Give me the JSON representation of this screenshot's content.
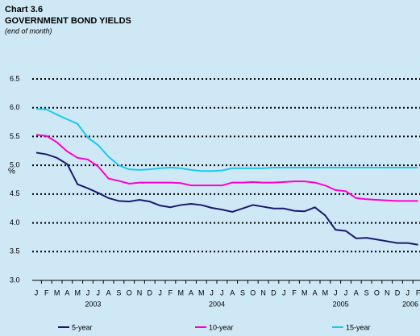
{
  "chart_data": {
    "type": "line",
    "title": "Chart 3.6",
    "subtitle": "GOVERNMENT BOND YIELDS",
    "note": "(end of month)",
    "y_label": "%",
    "categories": [
      "J",
      "F",
      "M",
      "A",
      "M",
      "J",
      "J",
      "A",
      "S",
      "O",
      "N",
      "D",
      "J",
      "F",
      "M",
      "A",
      "M",
      "J",
      "J",
      "A",
      "S",
      "O",
      "N",
      "D",
      "J",
      "F",
      "M",
      "A",
      "M",
      "J",
      "J",
      "A",
      "S",
      "O",
      "N",
      "D",
      "J",
      "F"
    ],
    "years": [
      "2003",
      "2004",
      "2005",
      "2006"
    ],
    "series": [
      {
        "name": "5-year",
        "color": "#1a1a6e",
        "values": [
          5.22,
          5.19,
          5.13,
          5.02,
          4.67,
          4.6,
          4.52,
          4.43,
          4.38,
          4.37,
          4.4,
          4.37,
          4.3,
          4.27,
          4.31,
          4.33,
          4.31,
          4.26,
          4.23,
          4.19,
          4.25,
          4.31,
          4.28,
          4.25,
          4.25,
          4.21,
          4.2,
          4.27,
          4.13,
          3.88,
          3.86,
          3.73,
          3.74,
          3.71,
          3.68,
          3.65,
          3.65,
          3.62
        ]
      },
      {
        "name": "10-year",
        "color": "#ff00cc",
        "values": [
          5.53,
          5.51,
          5.4,
          5.24,
          5.13,
          5.1,
          4.98,
          4.77,
          4.73,
          4.68,
          4.7,
          4.7,
          4.7,
          4.7,
          4.69,
          4.65,
          4.65,
          4.65,
          4.65,
          4.7,
          4.7,
          4.71,
          4.7,
          4.7,
          4.71,
          4.72,
          4.72,
          4.7,
          4.65,
          4.57,
          4.55,
          4.43,
          4.41,
          4.4,
          4.39,
          4.38,
          4.38,
          4.38
        ]
      },
      {
        "name": "15-year",
        "color": "#1ec8f0",
        "values": [
          5.98,
          5.97,
          5.88,
          5.8,
          5.72,
          5.48,
          5.35,
          5.15,
          5.0,
          4.93,
          4.92,
          4.93,
          4.95,
          4.96,
          4.95,
          4.92,
          4.9,
          4.9,
          4.91,
          4.95,
          4.95,
          4.95,
          4.95,
          4.96,
          4.96,
          4.96,
          4.96,
          4.96,
          4.96,
          4.96,
          4.96,
          4.96,
          4.96,
          4.96,
          4.96,
          4.96,
          4.96,
          4.96
        ]
      }
    ],
    "ylim": [
      3,
      6.5
    ],
    "yticks": [
      {
        "value": 3,
        "label": "3.0"
      },
      3.5,
      {
        "value": 4,
        "label": "4.0"
      },
      4.5,
      {
        "value": 5,
        "label": "5.0"
      },
      5.5,
      {
        "value": 6,
        "label": "6.0"
      },
      6.5
    ],
    "grid": true
  }
}
